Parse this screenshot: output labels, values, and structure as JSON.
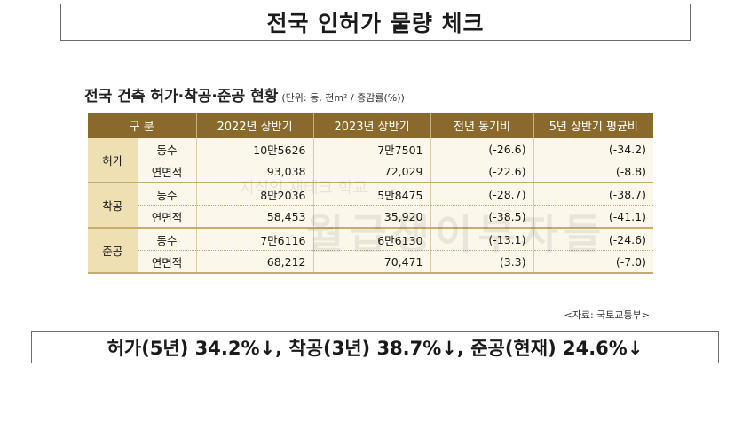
{
  "title": "전국 인허가 물량 체크",
  "table_title": "전국 건축 허가·착공·준공 현황",
  "unit_note": "(단위: 동, 천m² / 증감률(%))",
  "headers": [
    "구 분",
    "2022년 상반기",
    "2023년 상반기",
    "전년 동기비",
    "5년 상반기 평균비"
  ],
  "groups": [
    {
      "name": "허가",
      "rows": [
        {
          "metric": "동수",
          "h2022": "10만5626",
          "h2023": "7만7501",
          "yoy": "(-26.6)",
          "avg5": "(-34.2)"
        },
        {
          "metric": "연면적",
          "h2022": "93,038",
          "h2023": "72,029",
          "yoy": "(-22.6)",
          "avg5": "(-8.8)"
        }
      ]
    },
    {
      "name": "착공",
      "rows": [
        {
          "metric": "동수",
          "h2022": "8만2036",
          "h2023": "5만8475",
          "yoy": "(-28.7)",
          "avg5": "(-38.7)"
        },
        {
          "metric": "연면적",
          "h2022": "58,453",
          "h2023": "35,920",
          "yoy": "(-38.5)",
          "avg5": "(-41.1)"
        }
      ]
    },
    {
      "name": "준공",
      "rows": [
        {
          "metric": "동수",
          "h2022": "7만6116",
          "h2023": "6만6130",
          "yoy": "(-13.1)",
          "avg5": "(-24.6)"
        },
        {
          "metric": "연면적",
          "h2022": "68,212",
          "h2023": "70,471",
          "yoy": "(3.3)",
          "avg5": "(-7.0)"
        }
      ]
    }
  ],
  "source": "<자료: 국토교통부>",
  "watermark_small": "지식인 재테크 학교",
  "watermark_large": "월급쟁이부자들",
  "summary": "허가(5년) 34.2%↓, 착공(3년) 38.7%↓, 준공(현재) 24.6%↓"
}
